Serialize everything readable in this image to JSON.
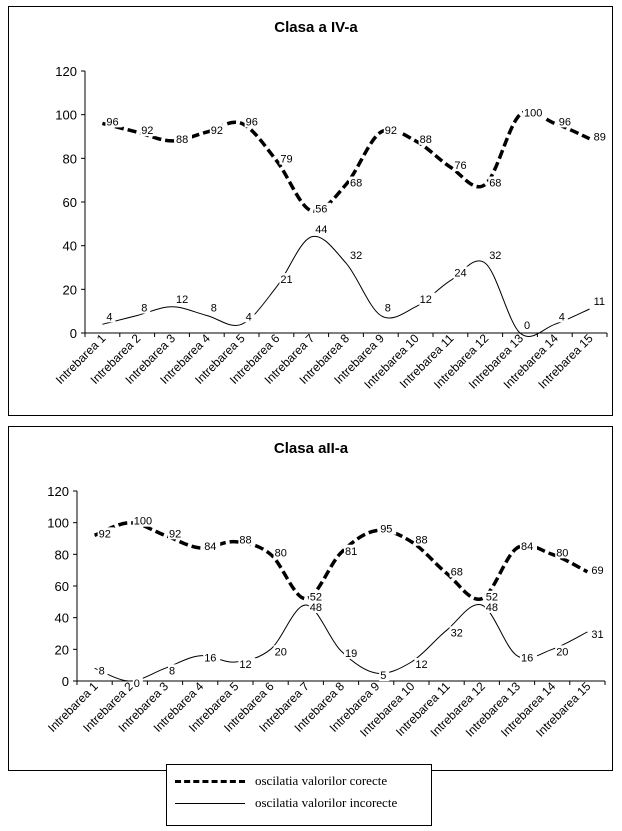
{
  "legend": {
    "correct_label": "oscilatia valorilor corecte",
    "incorrect_label": "oscilatia valorilor incorecte"
  },
  "chart_data": [
    {
      "type": "line",
      "title": "Clasa a IV-a",
      "categories": [
        "Intrebarea 1",
        "Intrebarea 2",
        "Intrebarea 3",
        "Intrebarea 4",
        "Intrebarea 5",
        "Intrebarea 6",
        "Intrebarea 7",
        "Intrebarea 8",
        "Intrebarea 9",
        "Intrebarea 10",
        "Intrebarea 11",
        "Intrebarea 12",
        "Intrebarea 13",
        "Intrebarea 14",
        "Intrebarea 15"
      ],
      "ylim": [
        0,
        120
      ],
      "yticks": [
        0,
        20,
        40,
        60,
        80,
        100,
        120
      ],
      "series": [
        {
          "name": "oscilatia valorilor corecte",
          "style": "dashed",
          "values": [
            96,
            92,
            88,
            92,
            96,
            79,
            56,
            68,
            92,
            88,
            76,
            68,
            100,
            96,
            89
          ]
        },
        {
          "name": "oscilatia valorilor incorecte",
          "style": "solid",
          "values": [
            4,
            8,
            12,
            8,
            4,
            21,
            44,
            32,
            8,
            12,
            24,
            32,
            0,
            4,
            11
          ]
        }
      ]
    },
    {
      "type": "line",
      "title": "Clasa aII-a",
      "categories": [
        "Intrebarea 1",
        "Intrebarea 2",
        "Intrebarea 3",
        "Intrebarea 4",
        "Intrebarea 5",
        "Intrebarea 6",
        "Intrebarea 7",
        "Intrebarea 8",
        "Intrebarea 9",
        "Intrebarea 10",
        "Intrebarea 11",
        "Intrebarea 12",
        "Intrebarea 13",
        "Intrebarea 14",
        "Intrebarea 15"
      ],
      "ylim": [
        0,
        120
      ],
      "yticks": [
        0,
        20,
        40,
        60,
        80,
        100,
        120
      ],
      "series": [
        {
          "name": "oscilatia valorilor corecte",
          "style": "dashed",
          "values": [
            92,
            100,
            92,
            84,
            88,
            80,
            52,
            81,
            95,
            88,
            68,
            52,
            84,
            80,
            69
          ]
        },
        {
          "name": "oscilatia valorilor incorecte",
          "style": "solid",
          "values": [
            8,
            0,
            8,
            16,
            12,
            20,
            48,
            19,
            5,
            12,
            32,
            48,
            16,
            20,
            31
          ]
        }
      ]
    }
  ]
}
